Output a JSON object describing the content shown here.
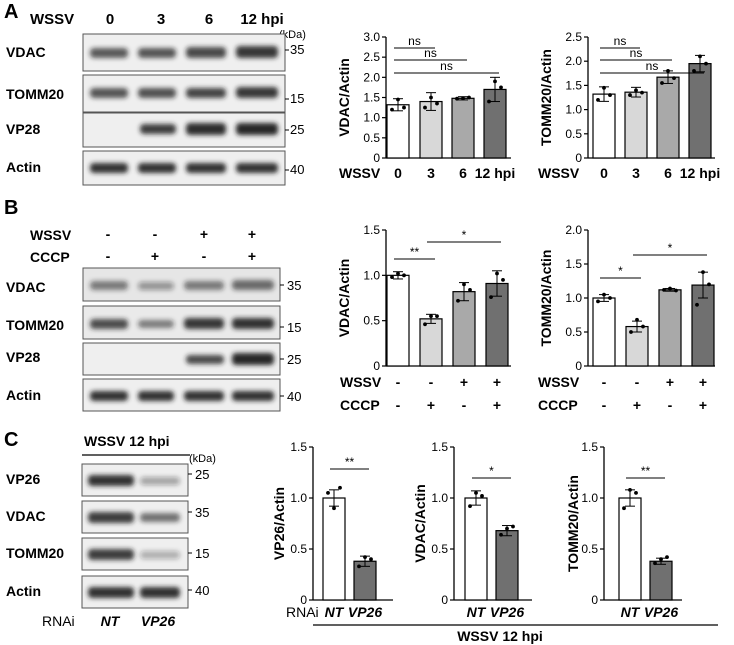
{
  "panels": [
    "A",
    "B",
    "C"
  ],
  "blot_labels": {
    "vdac": "VDAC",
    "tomm20": "TOMM20",
    "vp28": "VP28",
    "vp26": "VP26",
    "actin": "Actin",
    "kda": "(kDa)",
    "kda_c": "(kDa)",
    "mw_35": "35",
    "mw_15": "15",
    "mw_25": "25",
    "mw_40": "40"
  },
  "panel_a": {
    "wssv": "WSSV",
    "lanes": [
      "0",
      "3",
      "6",
      "12 hpi"
    ]
  },
  "panel_b": {
    "wssv": "WSSV",
    "cccp": "CCCP",
    "wssv_signs": [
      "-",
      "-",
      "+",
      "+"
    ],
    "cccp_signs": [
      "-",
      "+",
      "-",
      "+"
    ]
  },
  "panel_c": {
    "header": "WSSV 12 hpi",
    "rnai": "RNAi",
    "lanes": [
      "NT",
      "VP26"
    ],
    "bottom_label": "WSSV 12 hpi"
  },
  "chart_data": [
    {
      "id": "a1",
      "type": "bar",
      "ylabel": "VDAC/Actin",
      "ylim": [
        0,
        3.0
      ],
      "yticks": [
        "0",
        "0.5",
        "1.0",
        "1.5",
        "2.0",
        "2.5",
        "3.0"
      ],
      "xlabel": "WSSV",
      "categories": [
        "0",
        "3",
        "6",
        "12 hpi"
      ],
      "values": [
        1.32,
        1.4,
        1.48,
        1.7
      ],
      "errors": [
        0.15,
        0.22,
        0.04,
        0.3
      ],
      "fills": [
        "#ffffff",
        "#d8d8d8",
        "#a9a9a9",
        "#707070"
      ],
      "points": [
        [
          1.2,
          1.45,
          1.25
        ],
        [
          1.25,
          1.5,
          1.35
        ],
        [
          1.47,
          1.48,
          1.5
        ],
        [
          1.4,
          1.9,
          1.75
        ]
      ],
      "significance": [
        {
          "from": 0,
          "to": 1,
          "label": "ns"
        },
        {
          "from": 0,
          "to": 2,
          "label": "ns"
        },
        {
          "from": 0,
          "to": 3,
          "label": "ns"
        }
      ]
    },
    {
      "id": "a2",
      "type": "bar",
      "ylabel": "TOMM20/Actin",
      "ylim": [
        0,
        2.5
      ],
      "yticks": [
        "0",
        "0.5",
        "1.0",
        "1.5",
        "2.0",
        "2.5"
      ],
      "xlabel": "WSSV",
      "categories": [
        "0",
        "3",
        "6",
        "12 hpi"
      ],
      "values": [
        1.32,
        1.36,
        1.67,
        1.95
      ],
      "errors": [
        0.15,
        0.1,
        0.13,
        0.17
      ],
      "fills": [
        "#ffffff",
        "#d8d8d8",
        "#a9a9a9",
        "#707070"
      ],
      "points": [
        [
          1.2,
          1.45,
          1.3
        ],
        [
          1.3,
          1.4,
          1.35
        ],
        [
          1.55,
          1.8,
          1.65
        ],
        [
          1.8,
          2.1,
          1.95
        ]
      ],
      "significance": [
        {
          "from": 0,
          "to": 1,
          "label": "ns"
        },
        {
          "from": 0,
          "to": 2,
          "label": "ns"
        },
        {
          "from": 0,
          "to": 3,
          "label": "ns"
        }
      ]
    },
    {
      "id": "b1",
      "type": "bar",
      "ylabel": "VDAC/Actin",
      "ylim": [
        0,
        1.5
      ],
      "yticks": [
        "0",
        "0.5",
        "1.0",
        "1.5"
      ],
      "xlabel": "",
      "categories": [
        "",
        "",
        "",
        ""
      ],
      "values": [
        1.0,
        0.52,
        0.82,
        0.91
      ],
      "errors": [
        0.04,
        0.05,
        0.1,
        0.14
      ],
      "fills": [
        "#ffffff",
        "#d8d8d8",
        "#a9a9a9",
        "#707070"
      ],
      "points": [
        [
          0.98,
          1.02,
          1.0
        ],
        [
          0.46,
          0.55,
          0.55
        ],
        [
          0.72,
          0.9,
          0.84
        ],
        [
          0.76,
          1.02,
          0.95
        ]
      ],
      "significance": [
        {
          "from": 0,
          "to": 1,
          "label": "**"
        },
        {
          "from": 1,
          "to": 3,
          "label": "*"
        }
      ]
    },
    {
      "id": "b2",
      "type": "bar",
      "ylabel": "TOMM20/Actin",
      "ylim": [
        0,
        2.0
      ],
      "yticks": [
        "0",
        "0.5",
        "1.0",
        "1.5",
        "2.0"
      ],
      "xlabel": "",
      "categories": [
        "",
        "",
        "",
        ""
      ],
      "values": [
        1.0,
        0.58,
        1.12,
        1.19
      ],
      "errors": [
        0.05,
        0.08,
        0.02,
        0.19
      ],
      "fills": [
        "#ffffff",
        "#d8d8d8",
        "#a9a9a9",
        "#707070"
      ],
      "points": [
        [
          0.95,
          1.05,
          1.0
        ],
        [
          0.5,
          0.68,
          0.58
        ],
        [
          1.12,
          1.14,
          1.11
        ],
        [
          0.9,
          1.38,
          1.2
        ]
      ],
      "significance": [
        {
          "from": 0,
          "to": 1,
          "label": "*"
        },
        {
          "from": 1,
          "to": 3,
          "label": "*"
        }
      ]
    },
    {
      "id": "c1",
      "type": "bar",
      "ylabel": "VP26/Actin",
      "ylim": [
        0,
        1.5
      ],
      "yticks": [
        "0",
        "0.5",
        "1.0",
        "1.5"
      ],
      "xlabel": "",
      "categories": [
        "NT",
        "VP26"
      ],
      "values": [
        1.0,
        0.38
      ],
      "errors": [
        0.08,
        0.05
      ],
      "fills": [
        "#ffffff",
        "#707070"
      ],
      "points": [
        [
          1.05,
          0.9,
          1.1
        ],
        [
          0.33,
          0.42,
          0.4
        ]
      ],
      "significance": [
        {
          "from": 0,
          "to": 1,
          "label": "**"
        }
      ]
    },
    {
      "id": "c2",
      "type": "bar",
      "ylabel": "VDAC/Actin",
      "ylim": [
        0,
        1.5
      ],
      "yticks": [
        "0",
        "0.5",
        "1.0",
        "1.5"
      ],
      "xlabel": "",
      "categories": [
        "NT",
        "VP26"
      ],
      "values": [
        1.0,
        0.68
      ],
      "errors": [
        0.07,
        0.05
      ],
      "fills": [
        "#ffffff",
        "#707070"
      ],
      "points": [
        [
          0.92,
          1.05,
          1.02
        ],
        [
          0.64,
          0.7,
          0.72
        ]
      ],
      "significance": [
        {
          "from": 0,
          "to": 1,
          "label": "*"
        }
      ]
    },
    {
      "id": "c3",
      "type": "bar",
      "ylabel": "TOMM20/Actin",
      "ylim": [
        0,
        1.5
      ],
      "yticks": [
        "0",
        "0.5",
        "1.0",
        "1.5"
      ],
      "xlabel": "",
      "categories": [
        "NT",
        "VP26"
      ],
      "values": [
        1.0,
        0.38
      ],
      "errors": [
        0.08,
        0.03
      ],
      "fills": [
        "#ffffff",
        "#707070"
      ],
      "points": [
        [
          0.9,
          1.08,
          1.05
        ],
        [
          0.36,
          0.4,
          0.42
        ]
      ],
      "significance": [
        {
          "from": 0,
          "to": 1,
          "label": "**"
        }
      ]
    }
  ]
}
